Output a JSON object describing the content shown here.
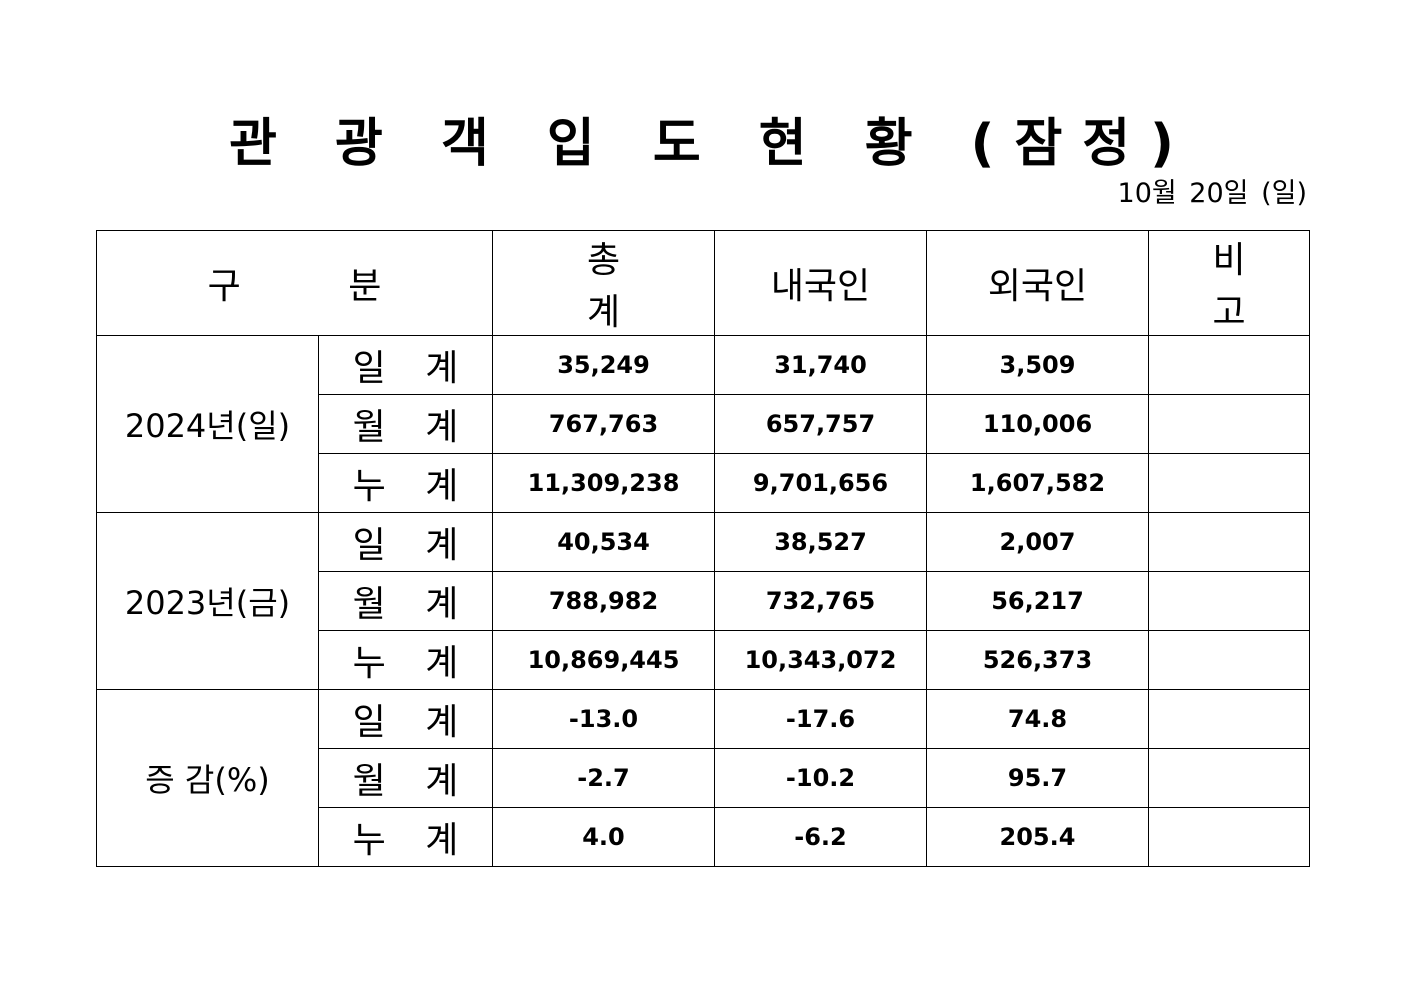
{
  "title": "관 광 객 입 도 현 황 (잠정)",
  "date": "10월 20일 (일)",
  "headers": {
    "category": "구 분",
    "total": "총 계",
    "domestic": "내국인",
    "foreign": "외국인",
    "note": "비 고"
  },
  "groups": [
    {
      "label": "2024년(일)",
      "rows": [
        {
          "label": "일 계",
          "total": "35,249",
          "domestic": "31,740",
          "foreign": "3,509",
          "note": ""
        },
        {
          "label": "월 계",
          "total": "767,763",
          "domestic": "657,757",
          "foreign": "110,006",
          "note": ""
        },
        {
          "label": "누 계",
          "total": "11,309,238",
          "domestic": "9,701,656",
          "foreign": "1,607,582",
          "note": ""
        }
      ]
    },
    {
      "label": "2023년(금)",
      "rows": [
        {
          "label": "일 계",
          "total": "40,534",
          "domestic": "38,527",
          "foreign": "2,007",
          "note": ""
        },
        {
          "label": "월 계",
          "total": "788,982",
          "domestic": "732,765",
          "foreign": "56,217",
          "note": ""
        },
        {
          "label": "누 계",
          "total": "10,869,445",
          "domestic": "10,343,072",
          "foreign": "526,373",
          "note": ""
        }
      ]
    },
    {
      "label": "증 감(%)",
      "rows": [
        {
          "label": "일 계",
          "total": "-13.0",
          "domestic": "-17.6",
          "foreign": "74.8",
          "note": ""
        },
        {
          "label": "월 계",
          "total": "-2.7",
          "domestic": "-10.2",
          "foreign": "95.7",
          "note": ""
        },
        {
          "label": "누 계",
          "total": "4.0",
          "domestic": "-6.2",
          "foreign": "205.4",
          "note": ""
        }
      ]
    }
  ]
}
